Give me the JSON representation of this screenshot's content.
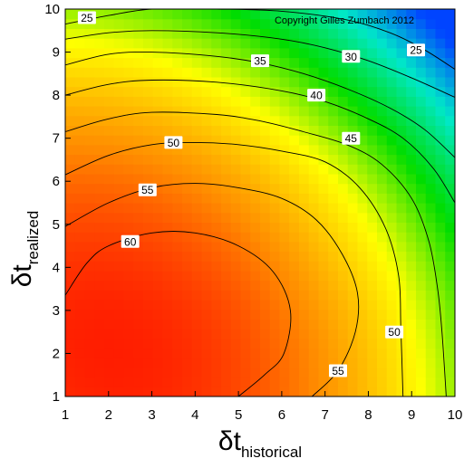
{
  "chart_data": {
    "type": "heatmap",
    "title": "",
    "xlabel": "δt",
    "xlabel_sub": "historical",
    "ylabel": "δt",
    "ylabel_sub": "realized",
    "xlim": [
      1,
      10
    ],
    "ylim": [
      1,
      10
    ],
    "x_ticks": [
      1,
      2,
      3,
      4,
      5,
      6,
      7,
      8,
      9,
      10
    ],
    "y_ticks": [
      1,
      2,
      3,
      4,
      5,
      6,
      7,
      8,
      9,
      10
    ],
    "annotation": "Copyright Gilles Zumbach 2012",
    "grid": false,
    "colormap": [
      "#ff0000",
      "#ff8c00",
      "#ffff00",
      "#00dd00",
      "#00e8c8",
      "#0044ff"
    ],
    "value_range": [
      20,
      68
    ],
    "peak": {
      "x": 2,
      "y": 2,
      "value": 66
    },
    "contour_levels": [
      25,
      30,
      35,
      40,
      45,
      50,
      55,
      60
    ],
    "contour_labels": [
      {
        "level": 25,
        "text": "25",
        "x": 1.5,
        "y": 9.8
      },
      {
        "level": 25,
        "text": "25",
        "x": 9.1,
        "y": 9.05
      },
      {
        "level": 30,
        "text": "30",
        "x": 7.6,
        "y": 8.9
      },
      {
        "level": 35,
        "text": "35",
        "x": 5.5,
        "y": 8.8
      },
      {
        "level": 40,
        "text": "40",
        "x": 6.8,
        "y": 8.0
      },
      {
        "level": 45,
        "text": "45",
        "x": 7.6,
        "y": 7.0
      },
      {
        "level": 50,
        "text": "50",
        "x": 3.5,
        "y": 6.9
      },
      {
        "level": 50,
        "text": "50",
        "x": 8.6,
        "y": 2.5
      },
      {
        "level": 55,
        "text": "55",
        "x": 2.9,
        "y": 5.8
      },
      {
        "level": 55,
        "text": "55",
        "x": 7.3,
        "y": 1.6
      },
      {
        "level": 60,
        "text": "60",
        "x": 2.5,
        "y": 4.6
      }
    ],
    "contours": [
      {
        "level": 25,
        "points": [
          [
            1.0,
            9.65
          ],
          [
            2.0,
            9.85
          ],
          [
            3.0,
            10.0
          ],
          [
            4.5,
            10.0
          ],
          [
            6.0,
            9.95
          ],
          [
            7.5,
            9.75
          ],
          [
            8.5,
            9.45
          ],
          [
            9.3,
            9.05
          ],
          [
            10.0,
            8.6
          ]
        ]
      },
      {
        "level": 30,
        "points": [
          [
            1.0,
            9.3
          ],
          [
            2.0,
            9.45
          ],
          [
            3.0,
            9.5
          ],
          [
            4.5,
            9.45
          ],
          [
            6.0,
            9.3
          ],
          [
            7.0,
            9.1
          ],
          [
            8.0,
            8.8
          ],
          [
            9.0,
            8.4
          ],
          [
            10.0,
            7.95
          ]
        ]
      },
      {
        "level": 35,
        "points": [
          [
            1.0,
            8.7
          ],
          [
            2.0,
            8.95
          ],
          [
            3.0,
            9.0
          ],
          [
            4.5,
            8.9
          ],
          [
            5.5,
            8.75
          ],
          [
            6.5,
            8.5
          ],
          [
            7.5,
            8.15
          ],
          [
            8.5,
            7.7
          ],
          [
            9.3,
            7.2
          ],
          [
            10.0,
            6.55
          ]
        ]
      },
      {
        "level": 40,
        "points": [
          [
            1.0,
            8.0
          ],
          [
            2.0,
            8.25
          ],
          [
            3.0,
            8.35
          ],
          [
            4.5,
            8.3
          ],
          [
            6.0,
            8.1
          ],
          [
            7.0,
            7.85
          ],
          [
            8.0,
            7.45
          ],
          [
            8.8,
            7.0
          ],
          [
            9.5,
            6.3
          ],
          [
            10.0,
            5.5
          ]
        ]
      },
      {
        "level": 45,
        "points": [
          [
            1.0,
            7.15
          ],
          [
            2.0,
            7.45
          ],
          [
            3.0,
            7.6
          ],
          [
            4.5,
            7.55
          ],
          [
            5.5,
            7.4
          ],
          [
            6.5,
            7.15
          ],
          [
            7.5,
            6.85
          ],
          [
            8.3,
            6.4
          ],
          [
            9.0,
            5.6
          ],
          [
            9.4,
            4.6
          ],
          [
            9.6,
            3.5
          ],
          [
            9.7,
            2.5
          ],
          [
            9.8,
            1.0
          ]
        ]
      },
      {
        "level": 50,
        "points": [
          [
            1.0,
            6.15
          ],
          [
            2.0,
            6.6
          ],
          [
            3.0,
            6.85
          ],
          [
            4.0,
            6.9
          ],
          [
            5.0,
            6.85
          ],
          [
            6.0,
            6.7
          ],
          [
            7.0,
            6.45
          ],
          [
            7.8,
            5.85
          ],
          [
            8.4,
            4.9
          ],
          [
            8.7,
            3.8
          ],
          [
            8.75,
            2.6
          ],
          [
            8.8,
            1.0
          ]
        ]
      },
      {
        "level": 55,
        "points": [
          [
            1.0,
            4.95
          ],
          [
            2.0,
            5.5
          ],
          [
            3.0,
            5.85
          ],
          [
            4.0,
            5.95
          ],
          [
            5.0,
            5.85
          ],
          [
            6.0,
            5.6
          ],
          [
            6.8,
            5.1
          ],
          [
            7.4,
            4.3
          ],
          [
            7.75,
            3.4
          ],
          [
            7.7,
            2.5
          ],
          [
            7.3,
            1.6
          ],
          [
            6.7,
            1.0
          ]
        ]
      },
      {
        "level": 60,
        "points": [
          [
            1.0,
            3.35
          ],
          [
            1.5,
            4.1
          ],
          [
            2.0,
            4.5
          ],
          [
            3.0,
            4.8
          ],
          [
            4.0,
            4.8
          ],
          [
            5.0,
            4.5
          ],
          [
            5.8,
            3.9
          ],
          [
            6.2,
            3.0
          ],
          [
            6.05,
            2.0
          ],
          [
            5.6,
            1.5
          ],
          [
            5.0,
            1.0
          ]
        ]
      }
    ]
  }
}
